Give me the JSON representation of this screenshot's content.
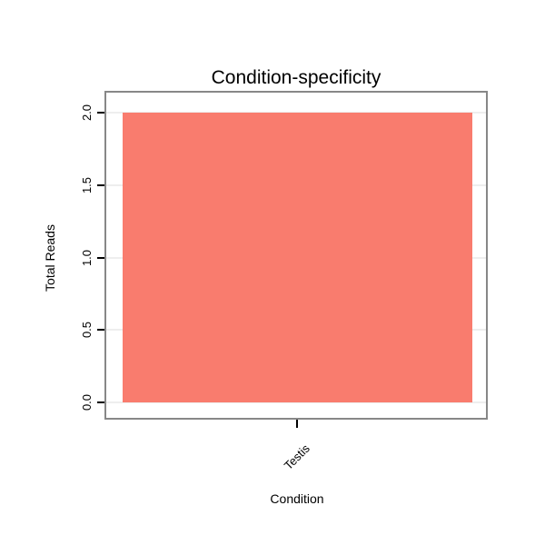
{
  "chart_data": {
    "type": "bar",
    "title": "Condition-specificity",
    "xlabel": "Condition",
    "ylabel": "Total Reads",
    "categories": [
      "Testis"
    ],
    "values": [
      2.0
    ],
    "ylim": [
      0,
      2
    ],
    "yticks": [
      0.0,
      0.5,
      1.0,
      1.5,
      2.0
    ],
    "ytick_labels": [
      "0.0",
      "0.5",
      "1.0",
      "1.5",
      "2.0"
    ],
    "legend": "none",
    "grid": true,
    "bar_color": "#f97c6e",
    "frame_color": "#878787",
    "gridline_color": "#eeeeee",
    "tick_color": "#000000",
    "background_color": "#ffffff"
  }
}
